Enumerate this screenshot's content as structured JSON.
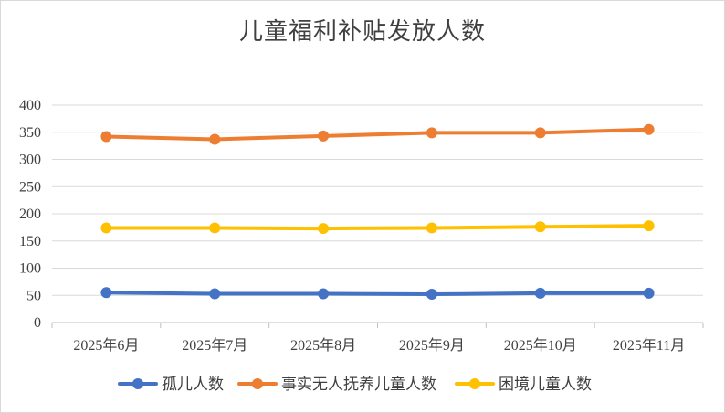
{
  "chart_data": {
    "type": "line",
    "title": "儿童福利补贴发放人数",
    "categories": [
      "2025年6月",
      "2025年7月",
      "2025年8月",
      "2025年9月",
      "2025年10月",
      "2025年11月"
    ],
    "ylim": [
      0,
      400
    ],
    "yticks": [
      0,
      50,
      100,
      150,
      200,
      250,
      300,
      350,
      400
    ],
    "grid": true,
    "legend_position": "bottom",
    "series": [
      {
        "name": "孤儿人数",
        "color": "#4472C4",
        "values": [
          55,
          53,
          53,
          52,
          54,
          54
        ]
      },
      {
        "name": "事实无人抚养儿童人数",
        "color": "#ED7D31",
        "values": [
          342,
          337,
          343,
          349,
          349,
          355
        ]
      },
      {
        "name": "困境儿童人数",
        "color": "#FFC000",
        "values": [
          174,
          174,
          173,
          174,
          176,
          178
        ]
      }
    ]
  }
}
